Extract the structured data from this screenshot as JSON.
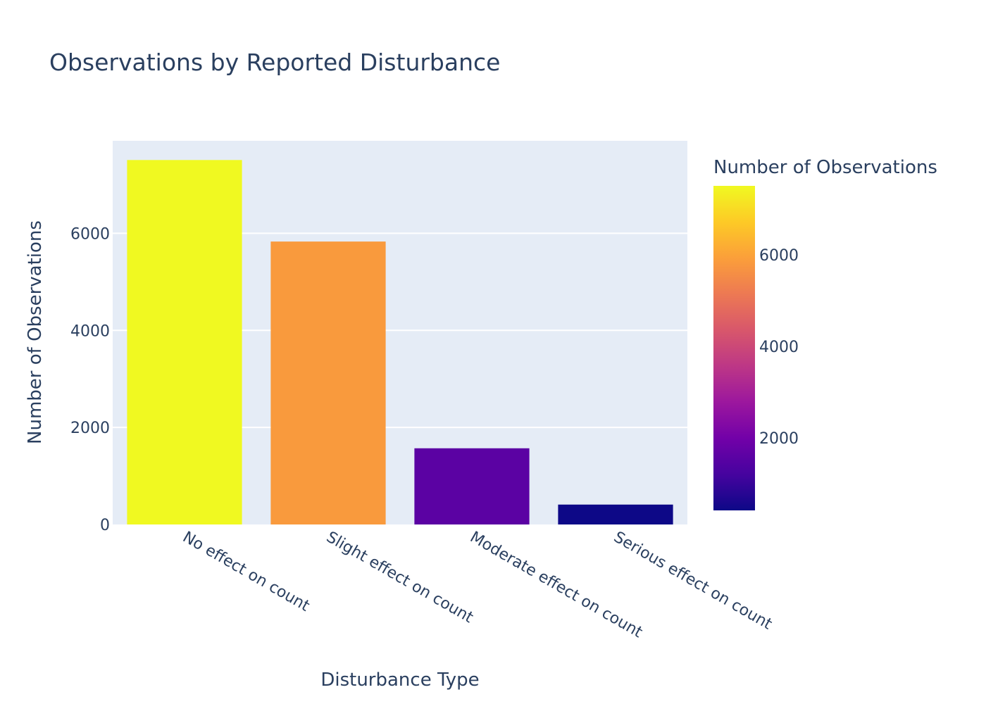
{
  "chart_data": {
    "type": "bar",
    "title": "Observations by Reported Disturbance",
    "xlabel": "Disturbance Type",
    "ylabel": "Number of Observations",
    "categories": [
      "No effect on count",
      "Slight effect on count",
      "Moderate effect on count",
      "Serious effect on count"
    ],
    "values": [
      7510,
      5830,
      1570,
      410
    ],
    "ylim": [
      0,
      7906
    ],
    "yticks": [
      0,
      2000,
      4000,
      6000
    ],
    "ytick_labels": [
      "0",
      "2000",
      "4000",
      "6000"
    ],
    "grid": true,
    "plot_background": "#e5ecf6",
    "colorbar": {
      "title": "Number of Observations",
      "range": [
        410,
        7510
      ],
      "ticks": [
        2000,
        4000,
        6000
      ],
      "tick_labels": [
        "2000",
        "4000",
        "6000"
      ],
      "colorscale": [
        "#0d0887",
        "#46039f",
        "#7201a8",
        "#9c179e",
        "#bd3786",
        "#d8576b",
        "#ed7953",
        "#fb9f3a",
        "#fdca26",
        "#f0f921"
      ]
    }
  }
}
